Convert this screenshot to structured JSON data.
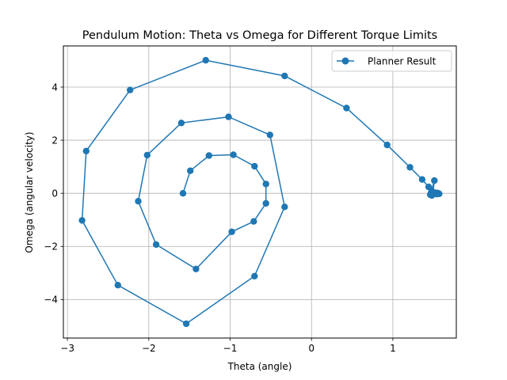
{
  "chart_data": {
    "type": "line",
    "title": "Pendulum Motion: Theta vs Omega for Different Torque Limits",
    "xlabel": "Theta (angle)",
    "ylabel": "Omega (angular velocity)",
    "xlim": [
      -3.05,
      1.78
    ],
    "ylim": [
      -5.45,
      5.55
    ],
    "xticks": [
      -3,
      -2,
      -1,
      0,
      1
    ],
    "yticks": [
      -4,
      -2,
      0,
      2,
      4
    ],
    "grid": true,
    "legend_position": "top-right",
    "series": [
      {
        "name": "Planner Result",
        "color": "#1f77b4",
        "marker": "circle",
        "points": [
          [
            -1.58,
            0.0
          ],
          [
            -1.49,
            0.85
          ],
          [
            -1.26,
            1.42
          ],
          [
            -0.96,
            1.45
          ],
          [
            -0.7,
            1.02
          ],
          [
            -0.56,
            0.35
          ],
          [
            -0.56,
            -0.38
          ],
          [
            -0.71,
            -1.06
          ],
          [
            -0.98,
            -1.45
          ],
          [
            -1.42,
            -2.85
          ],
          [
            -1.91,
            -1.93
          ],
          [
            -2.13,
            -0.3
          ],
          [
            -2.02,
            1.44
          ],
          [
            -1.6,
            2.65
          ],
          [
            -1.02,
            2.88
          ],
          [
            -0.51,
            2.2
          ],
          [
            -0.33,
            -0.51
          ],
          [
            -0.7,
            -3.12
          ],
          [
            -1.54,
            -4.91
          ],
          [
            -2.38,
            -3.46
          ],
          [
            -2.82,
            -1.02
          ],
          [
            -2.77,
            1.59
          ],
          [
            -2.23,
            3.89
          ],
          [
            -1.3,
            5.01
          ],
          [
            -0.33,
            4.42
          ],
          [
            0.43,
            3.21
          ],
          [
            0.93,
            1.82
          ],
          [
            1.21,
            0.98
          ],
          [
            1.36,
            0.52
          ],
          [
            1.44,
            0.24
          ],
          [
            1.48,
            0.08
          ],
          [
            1.5,
            -0.01
          ],
          [
            1.52,
            0.02
          ],
          [
            1.54,
            -0.03
          ],
          [
            1.56,
            0.0
          ],
          [
            1.57,
            -0.02
          ],
          [
            1.55,
            0.01
          ],
          [
            1.53,
            -0.02
          ],
          [
            1.51,
            0.0
          ],
          [
            1.5,
            0.03
          ],
          [
            1.49,
            -0.04
          ],
          [
            1.51,
            0.48
          ],
          [
            1.47,
            0.02
          ],
          [
            1.46,
            -0.05
          ],
          [
            1.48,
            -0.08
          ]
        ]
      }
    ]
  }
}
